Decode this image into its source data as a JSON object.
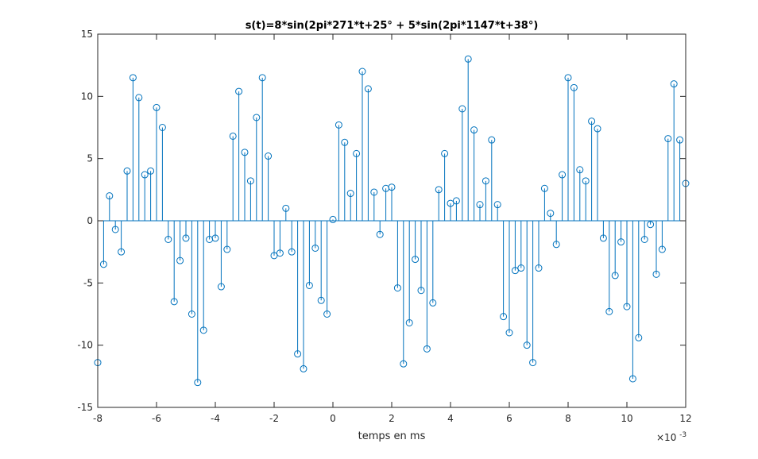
{
  "chart_data": {
    "type": "stem",
    "title": "s(t)=8*sin(2pi*271*t+25° + 5*sin(2pi*1147*t+38°)",
    "xlabel": "temps en ms",
    "ylabel": "",
    "x_multiplier_base": "×10",
    "x_multiplier_exp": "-3",
    "xlim": [
      -8,
      12
    ],
    "ylim": [
      -15,
      15
    ],
    "xticks": [
      -8,
      -6,
      -4,
      -2,
      0,
      2,
      4,
      6,
      8,
      10,
      12
    ],
    "yticks": [
      -15,
      -10,
      -5,
      0,
      5,
      10,
      15
    ],
    "grid": false,
    "color": "#0072bd",
    "x_start": -8,
    "x_step": 0.2,
    "values": [
      -11.4,
      -3.5,
      2.0,
      -0.7,
      -2.5,
      4.0,
      11.5,
      9.9,
      3.7,
      4.0,
      9.1,
      7.5,
      -1.5,
      -6.5,
      -3.2,
      -1.4,
      -7.5,
      -13.0,
      -8.8,
      -1.5,
      -1.4,
      -5.3,
      -2.3,
      6.8,
      10.4,
      5.5,
      3.2,
      8.3,
      11.5,
      5.2,
      -2.8,
      -2.6,
      1.0,
      -2.5,
      -10.7,
      -11.9,
      -5.2,
      -2.2,
      -6.4,
      -7.5,
      0.1,
      7.7,
      6.3,
      2.2,
      5.4,
      12.0,
      10.6,
      2.3,
      -1.1,
      2.6,
      2.7,
      -5.4,
      -11.5,
      -8.2,
      -3.1,
      -5.6,
      -10.3,
      -6.6,
      2.5,
      5.4,
      1.4,
      1.6,
      9.0,
      13.0,
      7.3,
      1.3,
      3.2,
      6.5,
      1.3,
      -7.7,
      -9.0,
      -4.0,
      -3.8,
      -10.0,
      -11.4,
      -3.8,
      2.6,
      0.6,
      -1.9,
      3.7,
      11.5,
      10.7,
      4.1,
      3.2,
      8.0,
      7.4,
      -1.4,
      -7.3,
      -4.4,
      -1.7,
      -6.9,
      -12.7,
      -9.4,
      -1.5,
      -0.3,
      -4.3,
      -2.3,
      6.6,
      11.0,
      6.5,
      3.0
    ]
  }
}
